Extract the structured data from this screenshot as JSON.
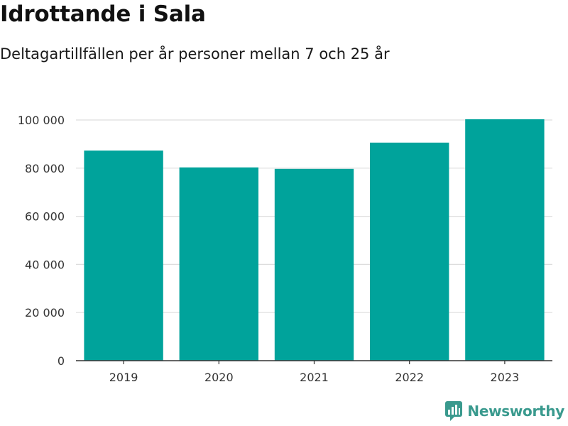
{
  "header": {
    "title": "Idrottande i Sala",
    "subtitle": "Deltagartillfällen per år personer mellan 7 och 25 år"
  },
  "brand": {
    "name": "Newsworthy",
    "logo_icon": "newsworthy-logo-icon",
    "color": "#3a9a8e"
  },
  "chart_data": {
    "type": "bar",
    "title": "Idrottande i Sala",
    "subtitle": "Deltagartillfällen per år personer mellan 7 och 25 år",
    "xlabel": "",
    "ylabel": "",
    "categories": [
      "2019",
      "2020",
      "2021",
      "2022",
      "2023"
    ],
    "values": [
      87300,
      80300,
      79700,
      90600,
      100300
    ],
    "ylim": [
      0,
      100000
    ],
    "yticks": [
      0,
      20000,
      40000,
      60000,
      80000,
      100000
    ],
    "ytick_labels": [
      "0",
      "20 000",
      "40 000",
      "60 000",
      "80 000",
      "100 000"
    ],
    "grid": true,
    "legend": "none",
    "colors": {
      "bar": "#00a39b",
      "grid": "#dddddd",
      "axis": "#333333"
    }
  }
}
